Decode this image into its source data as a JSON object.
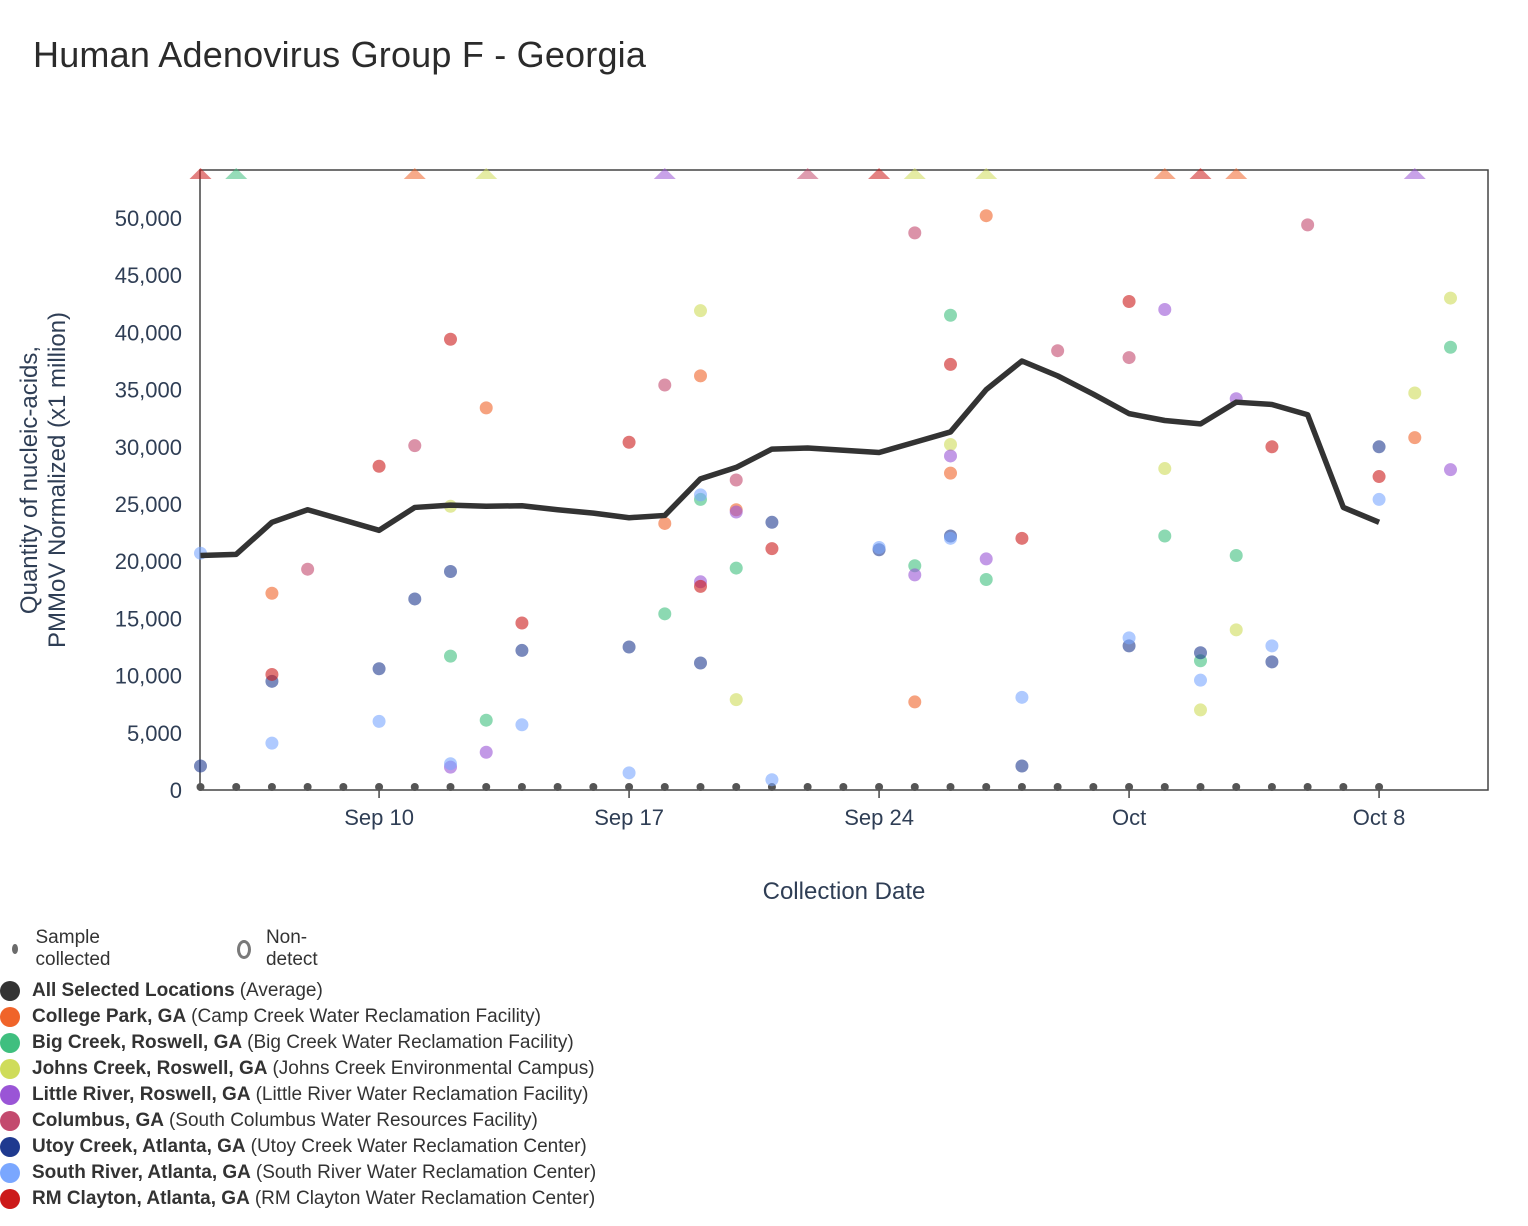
{
  "title": "Human Adenovirus Group F - Georgia",
  "chart_data": {
    "type": "scatter",
    "title": "Human Adenovirus Group F - Georgia",
    "xlabel": "Collection Date",
    "ylabel_lines": [
      "Quantity of nucleic-acids,",
      "PMMoV Normalized (x1 million)"
    ],
    "ylim": [
      0,
      54000
    ],
    "yticks": [
      0,
      5000,
      10000,
      15000,
      20000,
      25000,
      30000,
      35000,
      40000,
      45000,
      50000
    ],
    "ytick_labels": [
      "0",
      "5,000",
      "10,000",
      "15,000",
      "20,000",
      "25,000",
      "30,000",
      "35,000",
      "40,000",
      "45,000",
      "50,000"
    ],
    "xlim_day": [
      0,
      36
    ],
    "x_day_zero": "Sep 5",
    "xticks": [
      {
        "day": 5,
        "label": "Sep 10"
      },
      {
        "day": 12,
        "label": "Sep 17"
      },
      {
        "day": 19,
        "label": "Sep 24"
      },
      {
        "day": 26,
        "label": "Oct"
      },
      {
        "day": 33,
        "label": "Oct 8"
      }
    ],
    "sample_days": [
      0,
      1,
      2,
      3,
      4,
      5,
      6,
      7,
      8,
      9,
      10,
      11,
      12,
      13,
      14,
      15,
      16,
      17,
      18,
      19,
      20,
      21,
      22,
      23,
      24,
      25,
      26,
      27,
      28,
      29,
      30,
      31,
      32,
      33
    ],
    "average": {
      "name": "All Selected Locations",
      "desc": "(Average)",
      "color": "#333333",
      "points": [
        [
          0,
          20500
        ],
        [
          1,
          20600
        ],
        [
          2,
          23400
        ],
        [
          3,
          24500
        ],
        [
          4,
          23600
        ],
        [
          5,
          22700
        ],
        [
          6,
          24700
        ],
        [
          7,
          24900
        ],
        [
          8,
          24800
        ],
        [
          9,
          24850
        ],
        [
          10,
          24500
        ],
        [
          11,
          24200
        ],
        [
          12,
          23800
        ],
        [
          13,
          24000
        ],
        [
          14,
          27200
        ],
        [
          15,
          28200
        ],
        [
          16,
          29800
        ],
        [
          17,
          29900
        ],
        [
          18,
          29700
        ],
        [
          19,
          29500
        ],
        [
          20,
          30400
        ],
        [
          21,
          31300
        ],
        [
          22,
          35000
        ],
        [
          23,
          37500
        ],
        [
          24,
          36200
        ],
        [
          25,
          34600
        ],
        [
          26,
          32900
        ],
        [
          27,
          32300
        ],
        [
          28,
          32000
        ],
        [
          29,
          33900
        ],
        [
          30,
          33700
        ],
        [
          31,
          32800
        ],
        [
          32,
          24700
        ],
        [
          33,
          23400
        ]
      ]
    },
    "series": [
      {
        "name": "College Park, GA",
        "desc": "(Camp Creek Water Reclamation Facility)",
        "color": "#f0642a",
        "points": [
          [
            2,
            17200
          ],
          [
            8,
            33400
          ],
          [
            13,
            23300
          ],
          [
            14,
            36200
          ],
          [
            15,
            24500
          ],
          [
            20,
            7700
          ],
          [
            21,
            27700
          ],
          [
            22,
            50200
          ],
          [
            34,
            30800
          ]
        ],
        "nondetect_days": [
          6,
          27,
          29
        ]
      },
      {
        "name": "Big Creek, Roswell, GA",
        "desc": "(Big Creek Water Reclamation Facility)",
        "color": "#3fbf7f",
        "points": [
          [
            7,
            11700
          ],
          [
            8,
            6100
          ],
          [
            13,
            15400
          ],
          [
            14,
            25400
          ],
          [
            15,
            19400
          ],
          [
            20,
            19600
          ],
          [
            21,
            41500
          ],
          [
            22,
            18400
          ],
          [
            27,
            22200
          ],
          [
            28,
            11300
          ],
          [
            29,
            20500
          ],
          [
            35,
            38700
          ]
        ],
        "nondetect_days": [
          1
        ]
      },
      {
        "name": "Johns Creek, Roswell, GA",
        "desc": "(Johns Creek Environmental Campus)",
        "color": "#cfdc5a",
        "points": [
          [
            7,
            24800
          ],
          [
            14,
            41900
          ],
          [
            15,
            7900
          ],
          [
            21,
            30200
          ],
          [
            27,
            28100
          ],
          [
            28,
            7000
          ],
          [
            29,
            14000
          ],
          [
            34,
            34700
          ],
          [
            35,
            43000
          ]
        ],
        "nondetect_days": [
          8,
          20,
          22
        ]
      },
      {
        "name": "Little River, Roswell, GA",
        "desc": "(Little River Water Reclamation Facility)",
        "color": "#9a55d6",
        "points": [
          [
            7,
            2000
          ],
          [
            8,
            3300
          ],
          [
            14,
            18200
          ],
          [
            15,
            24300
          ],
          [
            20,
            18800
          ],
          [
            21,
            29200
          ],
          [
            22,
            20200
          ],
          [
            27,
            42000
          ],
          [
            29,
            34200
          ],
          [
            35,
            28000
          ]
        ],
        "nondetect_days": [
          13,
          34
        ]
      },
      {
        "name": "Columbus, GA",
        "desc": "(South Columbus Water Resources Facility)",
        "color": "#c34a6e",
        "points": [
          [
            3,
            19300
          ],
          [
            6,
            30100
          ],
          [
            13,
            35400
          ],
          [
            15,
            27100
          ],
          [
            20,
            48700
          ],
          [
            24,
            38400
          ],
          [
            26,
            37800
          ],
          [
            31,
            49400
          ]
        ],
        "nondetect_days": [
          17
        ]
      },
      {
        "name": "Utoy Creek, Atlanta, GA",
        "desc": "(Utoy Creek Water Reclamation Center)",
        "color": "#1f3a8f",
        "points": [
          [
            0,
            2100
          ],
          [
            2,
            9500
          ],
          [
            5,
            10600
          ],
          [
            6,
            16700
          ],
          [
            7,
            19100
          ],
          [
            9,
            12200
          ],
          [
            12,
            12500
          ],
          [
            14,
            11100
          ],
          [
            16,
            23400
          ],
          [
            19,
            21000
          ],
          [
            21,
            22200
          ],
          [
            23,
            2100
          ],
          [
            26,
            12600
          ],
          [
            28,
            12000
          ],
          [
            30,
            11200
          ],
          [
            33,
            30000
          ]
        ],
        "nondetect_days": []
      },
      {
        "name": "South River, Atlanta, GA",
        "desc": "(South River Water Reclamation Center)",
        "color": "#7aa7ff",
        "points": [
          [
            0,
            20700
          ],
          [
            2,
            4100
          ],
          [
            5,
            6000
          ],
          [
            7,
            2300
          ],
          [
            9,
            5700
          ],
          [
            12,
            1500
          ],
          [
            14,
            25800
          ],
          [
            16,
            900
          ],
          [
            19,
            21200
          ],
          [
            21,
            22000
          ],
          [
            23,
            8100
          ],
          [
            26,
            13300
          ],
          [
            28,
            9600
          ],
          [
            30,
            12600
          ],
          [
            33,
            25400
          ]
        ],
        "nondetect_days": []
      },
      {
        "name": "RM Clayton, Atlanta, GA",
        "desc": "(RM Clayton Water Reclamation Center)",
        "color": "#cc1a1a",
        "points": [
          [
            2,
            10100
          ],
          [
            5,
            28300
          ],
          [
            7,
            39400
          ],
          [
            9,
            14600
          ],
          [
            12,
            30400
          ],
          [
            14,
            17800
          ],
          [
            16,
            21100
          ],
          [
            21,
            37200
          ],
          [
            23,
            22000
          ],
          [
            26,
            42700
          ],
          [
            30,
            30000
          ],
          [
            33,
            27400
          ]
        ],
        "nondetect_days": [
          0,
          19,
          28
        ]
      }
    ]
  },
  "legend": {
    "sample_collected": "Sample collected",
    "non_detect": "Non-detect"
  }
}
